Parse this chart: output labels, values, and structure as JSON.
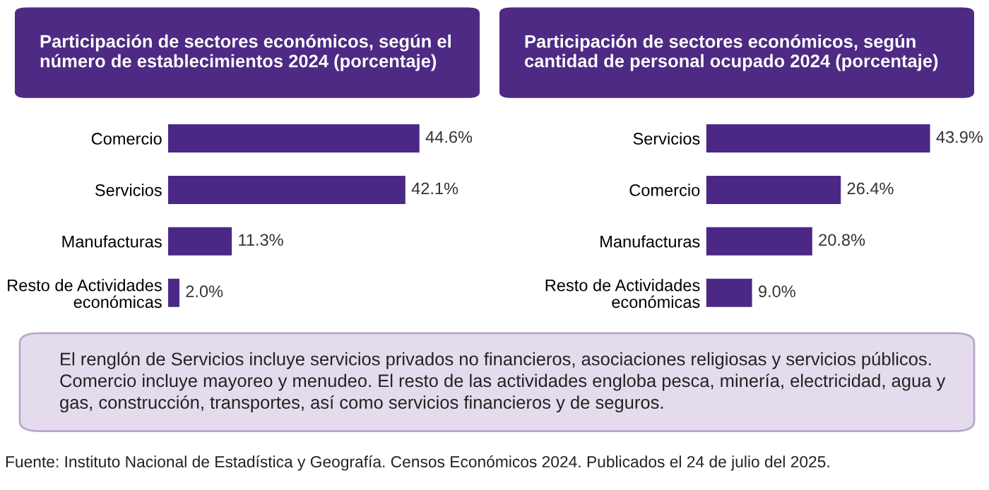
{
  "chart_data": [
    {
      "type": "bar",
      "orientation": "horizontal",
      "title": "Participación de sectores económicos, según el número de establecimientos 2024 (porcentaje)",
      "categories": [
        "Comercio",
        "Servicios",
        "Manufacturas",
        "Resto de Actividades\neconómicas"
      ],
      "values": [
        44.6,
        42.1,
        11.3,
        2.0
      ],
      "value_labels": [
        "44.6%",
        "42.1%",
        "11.3%",
        "2.0%"
      ],
      "color": "#4b2885",
      "tick_labels": "y"
    },
    {
      "type": "bar",
      "orientation": "horizontal",
      "title": "Participación de sectores económicos, según cantidad de personal ocupado 2024 (porcentaje)",
      "categories": [
        "Servicios",
        "Comercio",
        "Manufacturas",
        "Resto de Actividades\neconómicas"
      ],
      "values": [
        43.9,
        26.4,
        20.8,
        9.0
      ],
      "value_labels": [
        "43.9%",
        "26.4%",
        "20.8%",
        "9.0%"
      ],
      "color": "#4b2885",
      "tick_labels": "y"
    },
    {
      "type": "other",
      "annotations": [
        "El renglón de Servicios incluye servicios privados no financieros, asociaciones religiosas y servicios públicos. Comercio incluye mayoreo y menudeo. El resto de las actividades engloba pesca, minería, electricidad, agua y gas, construcción, transportes, así como servicios financieros y de seguros.",
        "Fuente: Instituto Nacional de Estadística y Geografía. Censos Económicos 2024. Publicados el 24 de julio del 2025."
      ]
    }
  ]
}
